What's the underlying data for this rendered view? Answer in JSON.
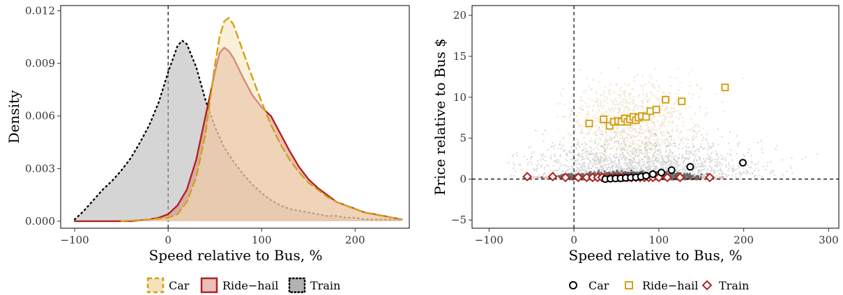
{
  "chart_data": [
    {
      "type": "area",
      "title": "",
      "xlabel": "Speed relative to Bus, %",
      "ylabel": "Density",
      "xlim": [
        -115,
        258
      ],
      "ylim": [
        -0.0004,
        0.0123
      ],
      "xticks": [
        -100,
        0,
        100,
        200
      ],
      "xtick_labels": [
        "−100",
        "0",
        "100",
        "200"
      ],
      "yticks": [
        0,
        0.003,
        0.006,
        0.009,
        0.012
      ],
      "ytick_labels": [
        "0.000",
        "0.003",
        "0.006",
        "0.009",
        "0.012"
      ],
      "reference_lines": {
        "x": 0
      },
      "legend_position": "bottom",
      "series": [
        {
          "name": "Train",
          "color": "#000000",
          "fill": "#b3b3b3",
          "line_style": "dotted",
          "x": [
            -100,
            -90,
            -80,
            -70,
            -60,
            -50,
            -40,
            -30,
            -20,
            -10,
            0,
            10,
            15,
            20,
            30,
            40,
            50,
            60,
            70,
            80,
            90,
            100,
            110,
            120,
            130,
            140,
            150,
            160,
            170,
            180,
            190,
            200,
            210,
            220,
            230,
            240,
            250
          ],
          "values": [
            0.0001,
            0.0006,
            0.0012,
            0.0018,
            0.0023,
            0.0029,
            0.0036,
            0.0045,
            0.0055,
            0.0068,
            0.0085,
            0.01,
            0.0103,
            0.0101,
            0.0088,
            0.0069,
            0.0054,
            0.0042,
            0.0034,
            0.0027,
            0.0021,
            0.0016,
            0.0012,
            0.0009,
            0.0007,
            0.0006,
            0.0005,
            0.0004,
            0.0003,
            0.0003,
            0.0002,
            0.0002,
            0.0001,
            0.0001,
            0.0001,
            0.0001,
            0.0001
          ]
        },
        {
          "name": "Ride−hail",
          "color": "#b22222",
          "fill": "#d98c7f",
          "line_style": "solid",
          "x": [
            -100,
            -80,
            -60,
            -40,
            -20,
            -10,
            0,
            10,
            20,
            30,
            40,
            50,
            55,
            60,
            65,
            70,
            80,
            90,
            100,
            110,
            120,
            130,
            140,
            150,
            160,
            170,
            180,
            190,
            200,
            210,
            220,
            230,
            240,
            250
          ],
          "values": [
            0,
            0,
            0,
            0,
            0.0001,
            0.0002,
            0.0004,
            0.0009,
            0.0018,
            0.0035,
            0.006,
            0.0085,
            0.0096,
            0.0099,
            0.0097,
            0.0093,
            0.0082,
            0.0072,
            0.0065,
            0.006,
            0.005,
            0.004,
            0.0031,
            0.0024,
            0.0019,
            0.0015,
            0.0011,
            0.0009,
            0.0007,
            0.0005,
            0.0004,
            0.0003,
            0.0002,
            0.0001
          ]
        },
        {
          "name": "Car",
          "color": "#d4a017",
          "fill": "#f2e3ba",
          "line_style": "dashed",
          "x": [
            -50,
            -20,
            0,
            10,
            20,
            30,
            40,
            50,
            55,
            60,
            65,
            70,
            80,
            90,
            100,
            110,
            120,
            130,
            140,
            150,
            160,
            170,
            180,
            190,
            200,
            210,
            220,
            230,
            240,
            250
          ],
          "values": [
            0,
            0.0001,
            0.0002,
            0.0004,
            0.0011,
            0.0025,
            0.005,
            0.0089,
            0.0105,
            0.0114,
            0.0116,
            0.0112,
            0.0097,
            0.0082,
            0.0068,
            0.0055,
            0.0044,
            0.0035,
            0.0028,
            0.0022,
            0.0018,
            0.0014,
            0.0011,
            0.0009,
            0.0007,
            0.0005,
            0.0004,
            0.0003,
            0.0002,
            0.0001
          ]
        }
      ]
    },
    {
      "type": "scatter",
      "title": "",
      "xlabel": "Speed relative to Bus, %",
      "ylabel": "Price relative to Bus $",
      "xlim": [
        -120,
        312
      ],
      "ylim": [
        -6,
        21.2
      ],
      "xticks": [
        -100,
        0,
        100,
        200,
        300
      ],
      "xtick_labels": [
        "−100",
        "0",
        "100",
        "200",
        "300"
      ],
      "yticks": [
        -5,
        0,
        5,
        10,
        15,
        20
      ],
      "ytick_labels": [
        "−5",
        "0",
        "5",
        "10",
        "15",
        "20"
      ],
      "reference_lines": {
        "x": 0,
        "y": 0
      },
      "legend_position": "bottom",
      "series": [
        {
          "name": "Car",
          "color": "#000000",
          "marker": "circle",
          "x": [
            37,
            43,
            49,
            55,
            61,
            67,
            73,
            79,
            85,
            93,
            103,
            115,
            137,
            199
          ],
          "values": [
            0.0,
            0.05,
            0.08,
            0.1,
            0.15,
            0.18,
            0.22,
            0.3,
            0.4,
            0.6,
            0.8,
            1.1,
            1.5,
            2.0
          ]
        },
        {
          "name": "Ride−hail",
          "color": "#d4a017",
          "marker": "square",
          "x": [
            18,
            35,
            42,
            47,
            52,
            56,
            60,
            63,
            66,
            70,
            73,
            76,
            80,
            85,
            90,
            97,
            108,
            127,
            178
          ],
          "values": [
            6.8,
            7.3,
            6.5,
            7.0,
            7.1,
            7.0,
            7.4,
            7.0,
            7.3,
            7.6,
            7.2,
            7.5,
            7.7,
            7.6,
            8.3,
            8.5,
            9.7,
            9.5,
            11.2
          ]
        },
        {
          "name": "Train",
          "color": "#b22222",
          "marker": "diamond",
          "x": [
            -55,
            -25,
            -10,
            5,
            15,
            22,
            28,
            33,
            38,
            43,
            48,
            53,
            58,
            63,
            68,
            73,
            78,
            83,
            88,
            93,
            100,
            110,
            125,
            160
          ],
          "values": [
            0.3,
            0.3,
            0.2,
            0.2,
            0.2,
            0.2,
            0.2,
            0.2,
            0.2,
            0.2,
            0.2,
            0.2,
            0.2,
            0.2,
            0.2,
            0.2,
            0.2,
            0.2,
            0.2,
            0.2,
            0.2,
            0.2,
            0.2,
            0.2
          ]
        }
      ]
    }
  ]
}
